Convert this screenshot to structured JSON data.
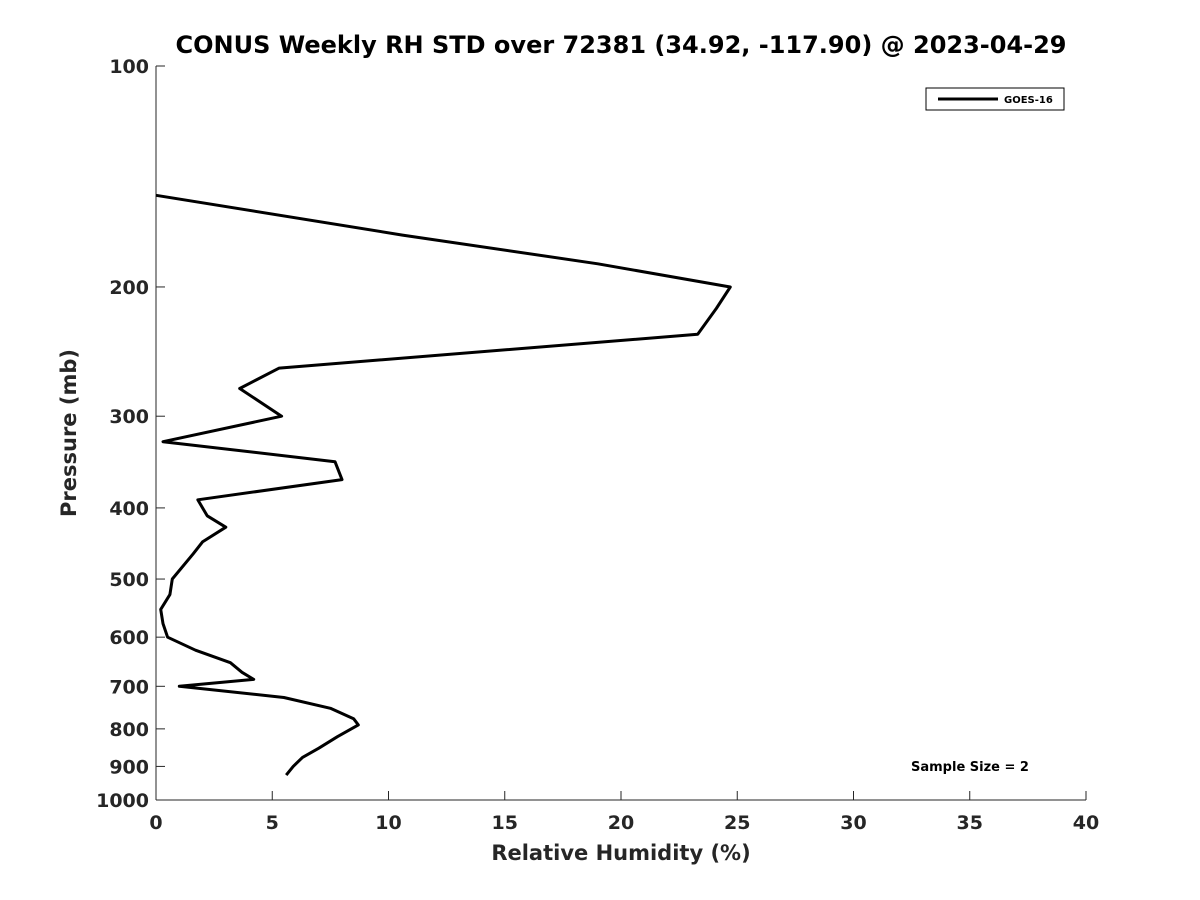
{
  "chart_data": {
    "type": "line",
    "title": "CONUS Weekly RH STD over 72381 (34.92, -117.90) @ 2023-04-29",
    "xlabel": "Relative Humidity (%)",
    "ylabel": "Pressure (mb)",
    "xlim": [
      0,
      40
    ],
    "ylim": [
      1000,
      100
    ],
    "yscale": "log",
    "x_ticks": [
      0,
      5,
      10,
      15,
      20,
      25,
      30,
      35,
      40
    ],
    "y_ticks": [
      100,
      200,
      300,
      400,
      500,
      600,
      700,
      800,
      900,
      1000
    ],
    "grid": false,
    "legend_position": "top-right",
    "series": [
      {
        "name": "GOES-16",
        "color": "#000000",
        "points": [
          {
            "x": 0.0,
            "y": 150
          },
          {
            "x": 10.6,
            "y": 170
          },
          {
            "x": 19.0,
            "y": 186
          },
          {
            "x": 24.7,
            "y": 200
          },
          {
            "x": 24.1,
            "y": 214
          },
          {
            "x": 23.3,
            "y": 232
          },
          {
            "x": 5.3,
            "y": 258
          },
          {
            "x": 3.6,
            "y": 275
          },
          {
            "x": 5.4,
            "y": 300
          },
          {
            "x": 0.3,
            "y": 325
          },
          {
            "x": 7.7,
            "y": 346
          },
          {
            "x": 8.0,
            "y": 366
          },
          {
            "x": 1.8,
            "y": 390
          },
          {
            "x": 2.2,
            "y": 410
          },
          {
            "x": 3.0,
            "y": 425
          },
          {
            "x": 2.0,
            "y": 445
          },
          {
            "x": 1.6,
            "y": 462
          },
          {
            "x": 0.7,
            "y": 500
          },
          {
            "x": 0.6,
            "y": 525
          },
          {
            "x": 0.2,
            "y": 550
          },
          {
            "x": 0.3,
            "y": 575
          },
          {
            "x": 0.5,
            "y": 600
          },
          {
            "x": 1.7,
            "y": 625
          },
          {
            "x": 3.2,
            "y": 650
          },
          {
            "x": 3.7,
            "y": 670
          },
          {
            "x": 4.2,
            "y": 685
          },
          {
            "x": 1.0,
            "y": 700
          },
          {
            "x": 5.5,
            "y": 725
          },
          {
            "x": 7.5,
            "y": 750
          },
          {
            "x": 8.5,
            "y": 775
          },
          {
            "x": 8.7,
            "y": 790
          },
          {
            "x": 7.8,
            "y": 820
          },
          {
            "x": 7.0,
            "y": 850
          },
          {
            "x": 6.3,
            "y": 875
          },
          {
            "x": 5.9,
            "y": 900
          },
          {
            "x": 5.6,
            "y": 925
          }
        ]
      }
    ],
    "annotation": "Sample Size = 2"
  }
}
